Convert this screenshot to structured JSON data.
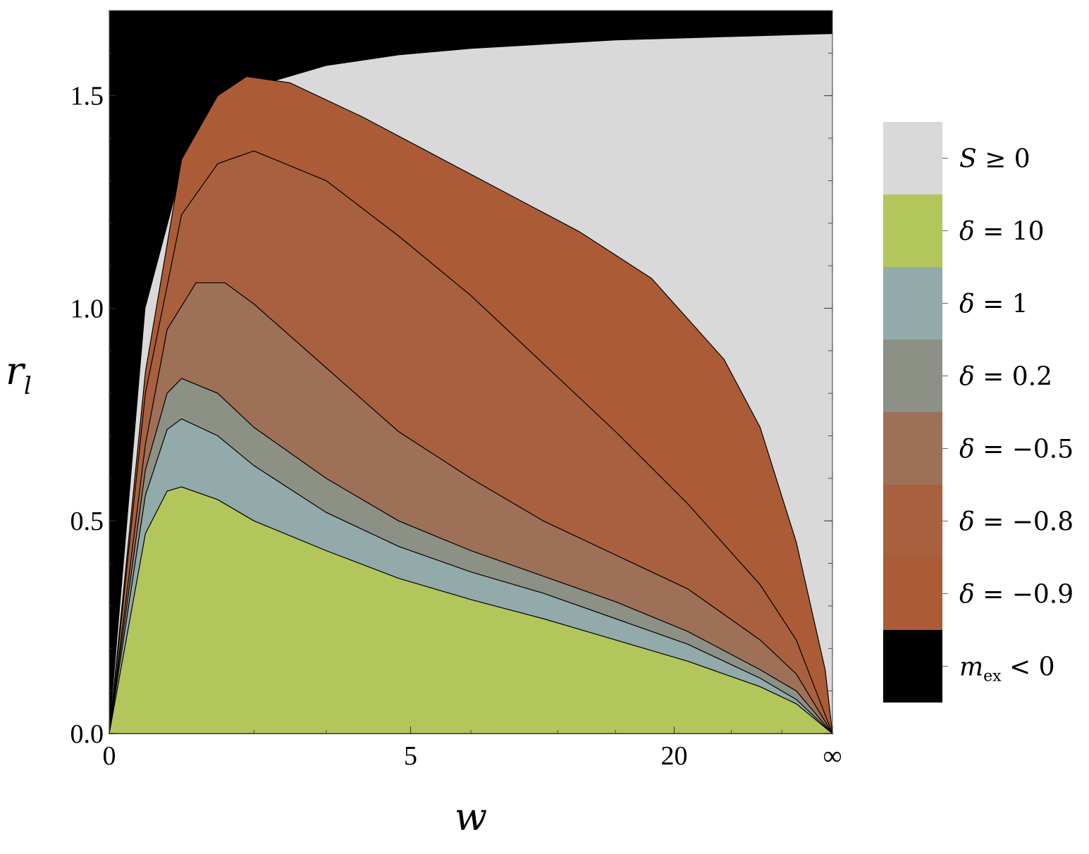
{
  "chart_data": {
    "type": "area",
    "xlabel": "w",
    "ylabel": "r",
    "ylabel_subscript": "l",
    "x_ticks": [
      {
        "label": "0",
        "pos": 0
      },
      {
        "label": "5",
        "pos": 0.4167
      },
      {
        "label": "20",
        "pos": 0.7812
      },
      {
        "label": "∞",
        "pos": 1
      }
    ],
    "y_ticks": [
      "0.0",
      "0.5",
      "1.0",
      "1.5"
    ],
    "ylim": [
      0,
      1.7
    ],
    "xlim_note": "compactified axis from 0 to ∞",
    "legend_position": "right",
    "series": [
      {
        "name": "S ≥ 0",
        "color": "#d9d9d9",
        "x": [
          0,
          0.05,
          0.1,
          0.15,
          0.2,
          0.3,
          0.4,
          0.5,
          0.6,
          0.7,
          0.8,
          0.9,
          1.0
        ],
        "y": [
          0.0,
          1.0,
          1.32,
          1.46,
          1.52,
          1.57,
          1.595,
          1.61,
          1.62,
          1.63,
          1.635,
          1.64,
          1.645
        ]
      },
      {
        "name": "δ = −0.9",
        "color": "#ab5c37",
        "x": [
          0,
          0.05,
          0.1,
          0.15,
          0.19,
          0.25,
          0.35,
          0.45,
          0.55,
          0.65,
          0.75,
          0.85,
          0.9,
          0.95,
          0.99,
          1.0
        ],
        "y": [
          0.0,
          0.85,
          1.35,
          1.5,
          1.545,
          1.53,
          1.45,
          1.36,
          1.27,
          1.18,
          1.07,
          0.88,
          0.72,
          0.45,
          0.15,
          0.0
        ]
      },
      {
        "name": "δ = −0.8",
        "color": "#a8603f",
        "x": [
          0,
          0.05,
          0.1,
          0.15,
          0.2,
          0.3,
          0.4,
          0.5,
          0.6,
          0.7,
          0.8,
          0.9,
          0.95,
          1.0
        ],
        "y": [
          0.0,
          0.8,
          1.22,
          1.34,
          1.37,
          1.3,
          1.17,
          1.03,
          0.87,
          0.71,
          0.54,
          0.35,
          0.22,
          0.0
        ]
      },
      {
        "name": "δ = −0.5",
        "color": "#9e7057",
        "x": [
          0,
          0.05,
          0.08,
          0.12,
          0.16,
          0.2,
          0.3,
          0.4,
          0.5,
          0.6,
          0.7,
          0.8,
          0.9,
          0.95,
          1.0
        ],
        "y": [
          0.0,
          0.68,
          0.95,
          1.06,
          1.06,
          1.01,
          0.86,
          0.71,
          0.6,
          0.5,
          0.42,
          0.34,
          0.22,
          0.14,
          0.0
        ]
      },
      {
        "name": "δ = 0.2",
        "color": "#8d9085",
        "x": [
          0,
          0.05,
          0.08,
          0.1,
          0.15,
          0.2,
          0.3,
          0.4,
          0.5,
          0.6,
          0.7,
          0.8,
          0.9,
          0.95,
          1.0
        ],
        "y": [
          0.0,
          0.62,
          0.8,
          0.835,
          0.8,
          0.72,
          0.6,
          0.5,
          0.43,
          0.37,
          0.31,
          0.24,
          0.15,
          0.1,
          0.0
        ]
      },
      {
        "name": "δ = 1",
        "color": "#92aaa9",
        "x": [
          0,
          0.05,
          0.08,
          0.1,
          0.15,
          0.2,
          0.3,
          0.4,
          0.5,
          0.6,
          0.7,
          0.8,
          0.9,
          0.95,
          1.0
        ],
        "y": [
          0.0,
          0.56,
          0.715,
          0.74,
          0.7,
          0.63,
          0.52,
          0.44,
          0.38,
          0.33,
          0.27,
          0.21,
          0.13,
          0.08,
          0.0
        ]
      },
      {
        "name": "δ = 10",
        "color": "#b2c65b",
        "x": [
          0,
          0.05,
          0.08,
          0.1,
          0.15,
          0.2,
          0.3,
          0.4,
          0.5,
          0.6,
          0.7,
          0.8,
          0.9,
          0.95,
          1.0
        ],
        "y": [
          0.0,
          0.47,
          0.57,
          0.58,
          0.55,
          0.5,
          0.43,
          0.365,
          0.315,
          0.27,
          0.22,
          0.17,
          0.11,
          0.07,
          0.0
        ]
      },
      {
        "name": "m_ex < 0",
        "color": "#000000"
      }
    ]
  },
  "legend": [
    {
      "var": "S",
      "sub": "",
      "rel": " ≥ 0",
      "color": "#d9d9d9"
    },
    {
      "var": "δ",
      "sub": "",
      "rel": " = 10",
      "color": "#b2c65b"
    },
    {
      "var": "δ",
      "sub": "",
      "rel": " = 1",
      "color": "#92aaa9"
    },
    {
      "var": "δ",
      "sub": "",
      "rel": " = 0.2",
      "color": "#8d9085"
    },
    {
      "var": "δ",
      "sub": "",
      "rel": " = −0.5",
      "color": "#9e7057"
    },
    {
      "var": "δ",
      "sub": "",
      "rel": " = −0.8",
      "color": "#a8603f"
    },
    {
      "var": "δ",
      "sub": "",
      "rel": " = −0.9",
      "color": "#ab5c37"
    },
    {
      "var": "m",
      "sub": "ex",
      "rel": " < 0",
      "color": "#000000"
    }
  ]
}
